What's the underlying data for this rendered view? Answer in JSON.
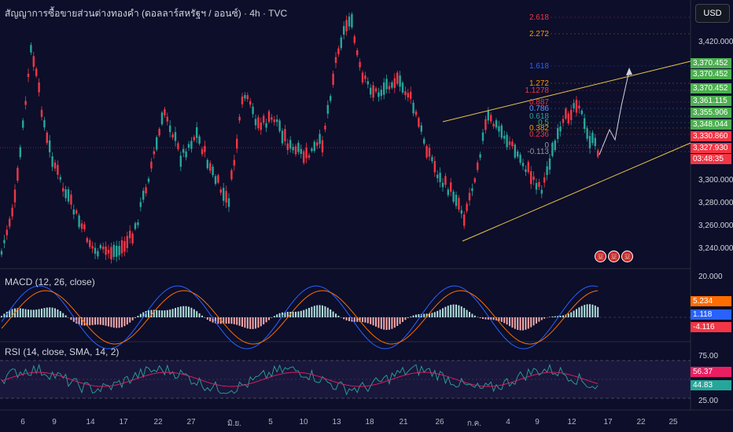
{
  "header": {
    "title": "สัญญาการซื้อขายส่วนต่างทองคำ (ดอลลาร์สหรัฐฯ / ออนซ์) · 4h · TVC",
    "currency_button": "USD"
  },
  "indicators": {
    "macd_label": "MACD (12, 26, close)",
    "rsi_label": "RSI (14, close, SMA, 14, 2)"
  },
  "price_axis": {
    "ticks": [
      "3,420.000",
      "3,300.000",
      "3,280.000",
      "3,260.000",
      "3,240.000"
    ]
  },
  "price_tags": [
    {
      "text": "3,370.452",
      "color": "#4caf50"
    },
    {
      "text": "3,370.452",
      "color": "#4caf50"
    },
    {
      "text": "3,370.452",
      "color": "#4caf50"
    },
    {
      "text": "3,361.115",
      "color": "#4caf50"
    },
    {
      "text": "3,355.906",
      "color": "#4caf50"
    },
    {
      "text": "3,348.044",
      "color": "#4caf50"
    },
    {
      "text": "3,330.860",
      "color": "#f23645"
    },
    {
      "text": "3,327.930",
      "color": "#f23645"
    },
    {
      "text": "03:48:35",
      "color": "#f23645"
    }
  ],
  "macd_axis": {
    "top": "20.000",
    "tags": [
      {
        "text": "5.234",
        "color": "#ff6d00"
      },
      {
        "text": "1.118",
        "color": "#2962ff"
      },
      {
        "text": "-4.116",
        "color": "#f23645"
      }
    ]
  },
  "rsi_axis": {
    "top": "75.00",
    "bottom": "25.00",
    "tags": [
      {
        "text": "56.37",
        "color": "#e91e63"
      },
      {
        "text": "44.83",
        "color": "#26a69a"
      }
    ]
  },
  "fib_levels": [
    {
      "label": "2.618",
      "color": "#f23645"
    },
    {
      "label": "2.272",
      "color": "#ff9800"
    },
    {
      "label": "1.618",
      "color": "#2962ff"
    },
    {
      "label": "1.272",
      "color": "#ff9800"
    },
    {
      "label": "1.1278",
      "color": "#f23645"
    },
    {
      "label": "0.887",
      "color": "#f23645"
    },
    {
      "label": "0.786",
      "color": "#5c9cff"
    },
    {
      "label": "0.618",
      "color": "#26a69a"
    },
    {
      "label": "0.5",
      "color": "#4caf50"
    },
    {
      "label": "0.382",
      "color": "#ff9800"
    },
    {
      "label": "0.236",
      "color": "#f23645"
    },
    {
      "label": "0",
      "color": "#9598a1"
    },
    {
      "label": "-0.113",
      "color": "#9598a1"
    }
  ],
  "time_axis": {
    "labels": [
      "6",
      "9",
      "14",
      "17",
      "22",
      "27",
      "มิ.ย.",
      "5",
      "10",
      "13",
      "18",
      "21",
      "26",
      "ก.ค.",
      "4",
      "9",
      "12",
      "17",
      "22",
      "25"
    ]
  },
  "colors": {
    "background": "#0c0e2a",
    "up": "#26a69a",
    "down": "#f23645",
    "channel": "#e8c547",
    "macd_line": "#2962ff",
    "signal_line": "#ff6d00",
    "rsi_line": "#26a69a",
    "rsi_ma": "#e91e63"
  },
  "events": {
    "flag_icons": [
      "us-flag-icon",
      "us-flag-icon",
      "us-flag-icon"
    ]
  }
}
